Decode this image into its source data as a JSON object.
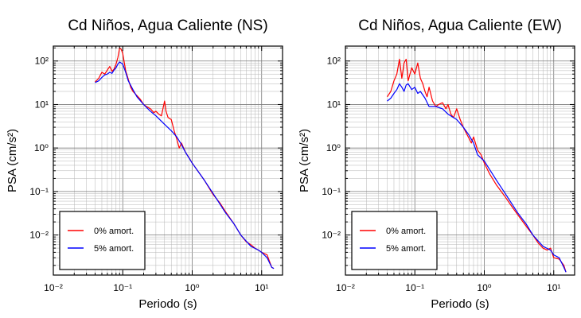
{
  "figure": {
    "chart_data": [
      {
        "type": "line",
        "title": "Cd Niños, Agua Caliente (NS)",
        "xlabel": "Periodo (s)",
        "ylabel": "PSA (cm/s²)",
        "xscale": "log",
        "yscale": "log",
        "xlim": [
          0.01,
          20
        ],
        "ylim": [
          0.0012,
          220
        ],
        "grid": true,
        "legend_position": "bottom-left",
        "x_tick_labels": [
          "10⁻²",
          "10⁻¹",
          "10⁰",
          "10¹"
        ],
        "y_tick_labels": [
          "10⁻²",
          "10⁻¹",
          "10⁰",
          "10¹",
          "10²"
        ],
        "series": [
          {
            "name": "0% amort.",
            "color": "#ff0000",
            "x": [
              0.04,
              0.045,
              0.05,
              0.055,
              0.06,
              0.065,
              0.07,
              0.075,
              0.08,
              0.085,
              0.09,
              0.095,
              0.1,
              0.11,
              0.12,
              0.13,
              0.14,
              0.16,
              0.18,
              0.2,
              0.22,
              0.25,
              0.28,
              0.3,
              0.33,
              0.36,
              0.4,
              0.42,
              0.45,
              0.5,
              0.55,
              0.6,
              0.65,
              0.7,
              0.8,
              0.9,
              1.0,
              1.2,
              1.5,
              2.0,
              2.5,
              3.0,
              4.0,
              5.0,
              6.0,
              7.0,
              8.0,
              9.0,
              10.0,
              12.0,
              14.0,
              15.0
            ],
            "y": [
              33,
              40,
              55,
              50,
              62,
              75,
              58,
              65,
              85,
              120,
              200,
              185,
              150,
              60,
              38,
              25,
              20,
              16,
              13,
              10,
              9,
              8,
              6.5,
              7,
              6,
              5.5,
              12,
              7,
              5,
              4.5,
              2.5,
              1.6,
              1.0,
              1.3,
              0.8,
              0.6,
              0.45,
              0.3,
              0.18,
              0.085,
              0.055,
              0.035,
              0.018,
              0.01,
              0.007,
              0.006,
              0.005,
              0.0045,
              0.004,
              0.0035,
              0.0018,
              0.0017
            ]
          },
          {
            "name": "5% amort.",
            "color": "#0000ff",
            "x": [
              0.04,
              0.045,
              0.05,
              0.055,
              0.06,
              0.065,
              0.07,
              0.075,
              0.08,
              0.085,
              0.09,
              0.1,
              0.11,
              0.12,
              0.14,
              0.16,
              0.2,
              0.25,
              0.3,
              0.4,
              0.5,
              0.6,
              0.7,
              0.8,
              1.0,
              1.5,
              2.0,
              3.0,
              4.0,
              5.0,
              7.0,
              9.0,
              10.0,
              12.0,
              14.0,
              15.0
            ],
            "y": [
              32,
              35,
              42,
              48,
              50,
              55,
              52,
              62,
              70,
              85,
              95,
              85,
              55,
              35,
              22,
              15,
              10,
              7,
              5.5,
              3.5,
              2.5,
              1.8,
              1.2,
              0.8,
              0.45,
              0.18,
              0.09,
              0.033,
              0.018,
              0.01,
              0.0055,
              0.0045,
              0.004,
              0.003,
              0.0018,
              0.0017
            ]
          }
        ]
      },
      {
        "type": "line",
        "title": "Cd Niños, Agua Caliente (EW)",
        "xlabel": "Periodo (s)",
        "ylabel": "PSA (cm/s²)",
        "xscale": "log",
        "yscale": "log",
        "xlim": [
          0.01,
          20
        ],
        "ylim": [
          0.0012,
          220
        ],
        "grid": true,
        "legend_position": "bottom-left",
        "x_tick_labels": [
          "10⁻²",
          "10⁻¹",
          "10⁰",
          "10¹"
        ],
        "y_tick_labels": [
          "10⁻²",
          "10⁻¹",
          "10⁰",
          "10¹",
          "10²"
        ],
        "series": [
          {
            "name": "0% amort.",
            "color": "#ff0000",
            "x": [
              0.04,
              0.045,
              0.05,
              0.055,
              0.06,
              0.065,
              0.07,
              0.075,
              0.08,
              0.09,
              0.1,
              0.11,
              0.12,
              0.13,
              0.14,
              0.15,
              0.16,
              0.18,
              0.2,
              0.22,
              0.25,
              0.28,
              0.3,
              0.33,
              0.36,
              0.4,
              0.45,
              0.5,
              0.55,
              0.6,
              0.65,
              0.7,
              0.8,
              0.9,
              1.0,
              1.2,
              1.5,
              2.0,
              2.5,
              3.0,
              4.0,
              5.0,
              6.0,
              7.0,
              8.0,
              9.0,
              10.0,
              12.0,
              14.0,
              15.0
            ],
            "y": [
              15,
              20,
              35,
              50,
              110,
              40,
              90,
              110,
              35,
              70,
              50,
              90,
              40,
              30,
              20,
              15,
              25,
              12,
              9,
              10,
              11,
              8,
              10,
              6,
              5,
              8,
              4.5,
              3,
              2.2,
              1.7,
              1.3,
              1.8,
              0.9,
              0.7,
              0.45,
              0.25,
              0.14,
              0.075,
              0.045,
              0.03,
              0.016,
              0.01,
              0.0065,
              0.005,
              0.0045,
              0.005,
              0.003,
              0.0028,
              0.002,
              0.0014
            ]
          },
          {
            "name": "5% amort.",
            "color": "#0000ff",
            "x": [
              0.04,
              0.045,
              0.05,
              0.055,
              0.06,
              0.065,
              0.07,
              0.075,
              0.08,
              0.09,
              0.1,
              0.11,
              0.12,
              0.14,
              0.16,
              0.2,
              0.25,
              0.3,
              0.4,
              0.5,
              0.6,
              0.7,
              0.8,
              1.0,
              1.5,
              2.0,
              3.0,
              4.0,
              5.0,
              7.0,
              9.0,
              10.0,
              12.0,
              14.0,
              15.0
            ],
            "y": [
              12,
              14,
              18,
              22,
              30,
              25,
              20,
              28,
              30,
              22,
              25,
              18,
              20,
              14,
              9,
              9,
              8,
              6,
              4.5,
              3,
              2,
              1.3,
              0.7,
              0.5,
              0.18,
              0.09,
              0.033,
              0.018,
              0.01,
              0.0055,
              0.0045,
              0.0035,
              0.003,
              0.0018,
              0.0014
            ]
          }
        ]
      }
    ]
  }
}
